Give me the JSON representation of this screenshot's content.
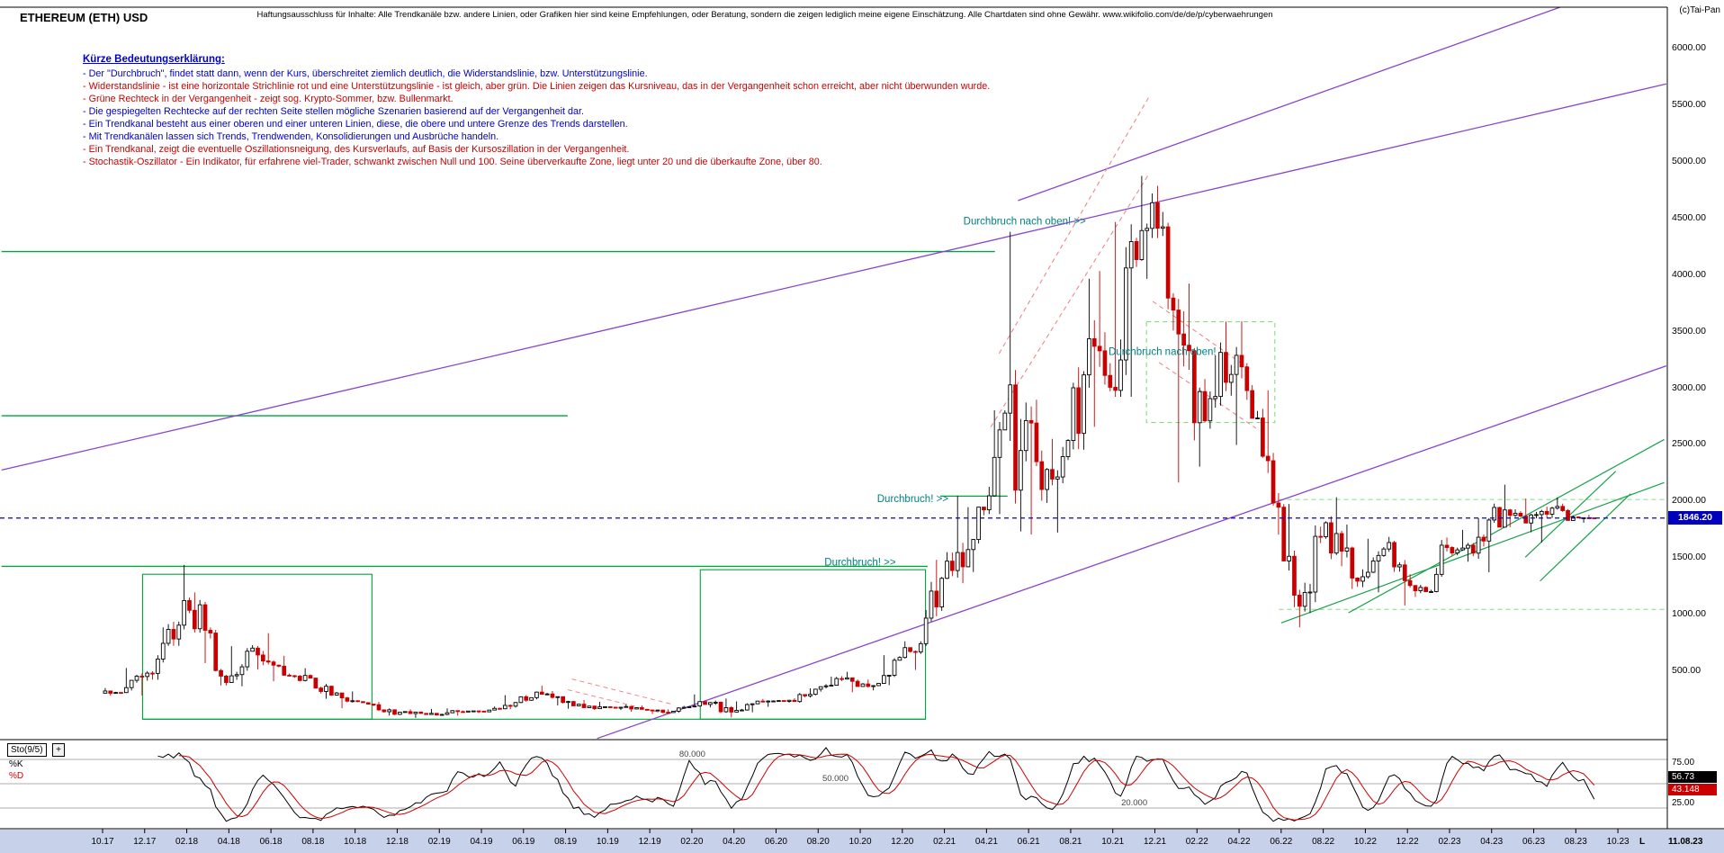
{
  "window": {
    "title": "ETHEREUM (ETH) USD",
    "disclaimer": "Haftungsausschluss für Inhalte: Alle Trendkanäle bzw. andere Linien, oder Grafiken hier sind keine Empfehlungen, oder Beratung, sondern die zeigen lediglich meine eigene Einschätzung. Alle Chartdaten sind ohne Gewähr.  www.wikifolio.com/de/de/p/cyberwaehrungen",
    "copyright": "(c)Tai-Pan"
  },
  "legend": {
    "title": "Kürze Bedeutungserklärung:",
    "lines": [
      {
        "text": "- Der \"Durchbruch\", findet statt dann, wenn der Kurs, überschreitet ziemlich deutlich, die Widerstandslinie, bzw. Unterstützungslinie.",
        "color": "#0000CC"
      },
      {
        "text": "- Widerstandslinie - ist eine horizontale Strichlinie rot und eine Unterstützungslinie - ist gleich, aber grün. Die Linien zeigen das Kursniveau, das in der Vergangenheit schon erreicht, aber nicht überwunden wurde.",
        "color": "#CC0000"
      },
      {
        "text": "- Grüne Rechteck in der Vergangenheit - zeigt sog. Krypto-Sommer, bzw. Bullenmarkt.",
        "color": "#CC0000"
      },
      {
        "text": "- Die gespiegelten Rechtecke auf der rechten Seite stellen mögliche Szenarien basierend auf der Vergangenheit dar.",
        "color": "#0000CC"
      },
      {
        "text": "- Ein Trendkanal besteht aus einer oberen und einer unteren Linien, diese, die obere und untere Grenze des Trends darstellen.",
        "color": "#0000CC"
      },
      {
        "text": "- Mit Trendkanälen lassen sich Trends, Trendwenden, Konsolidierungen und Ausbrüche handeln.",
        "color": "#0000CC"
      },
      {
        "text": "- Ein Trendkanal, zeigt die eventuelle Oszillationsneigung, des Kursverlaufs, auf Basis der Kursoszillation in der Vergangenheit.",
        "color": "#CC0000"
      },
      {
        "text": "- Stochastik-Oszillator - Ein Indikator, für erfahrene viel-Trader, schwankt zwischen Null und 100. Seine überverkaufte Zone, liegt unter 20 und die überkaufte Zone, über 80.",
        "color": "#CC0000"
      }
    ]
  },
  "chart_data": {
    "type": "candlestick",
    "title": "ETHEREUM (ETH) USD",
    "x_axis": {
      "start_month": "2017-10",
      "tick_step_months": 2,
      "tick_labels": [
        "10.17",
        "12.17",
        "02.18",
        "04.18",
        "06.18",
        "08.18",
        "10.18",
        "12.18",
        "02.19",
        "04.19",
        "06.19",
        "08.19",
        "10.19",
        "12.19",
        "02.20",
        "04.20",
        "06.20",
        "08.20",
        "10.20",
        "12.20",
        "02.21",
        "04.21",
        "06.21",
        "08.21",
        "10.21",
        "12.21",
        "02.22",
        "04.22",
        "06.22",
        "08.22",
        "10.22",
        "12.22",
        "02.23",
        "04.23",
        "06.23",
        "08.23",
        "10.23"
      ],
      "last_date_label": "11.08.23",
      "scale_indicator": "L"
    },
    "y_axis": {
      "ticks": [
        {
          "value": 6000,
          "label": "6000.00"
        },
        {
          "value": 5500,
          "label": "5500.00"
        },
        {
          "value": 5000,
          "label": "5000.00"
        },
        {
          "value": 4500,
          "label": "4500.00"
        },
        {
          "value": 4000,
          "label": "4000.00"
        },
        {
          "value": 3500,
          "label": "3500.00"
        },
        {
          "value": 3000,
          "label": "3000.00"
        },
        {
          "value": 2500,
          "label": "2500.00"
        },
        {
          "value": 2000,
          "label": "2000.00"
        },
        {
          "value": 1500,
          "label": "1500.00"
        },
        {
          "value": 1000,
          "label": "1000.00"
        },
        {
          "value": 500,
          "label": "500.00"
        }
      ],
      "current_price": 1846.2,
      "current_price_label": "1846.20"
    },
    "candles_monthly": [
      [
        300,
        345,
        277,
        305
      ],
      [
        305,
        522,
        280,
        447
      ],
      [
        447,
        881,
        410,
        740
      ],
      [
        740,
        1432,
        718,
        1118
      ],
      [
        1118,
        1190,
        565,
        855
      ],
      [
        855,
        880,
        368,
        394
      ],
      [
        394,
        715,
        360,
        670
      ],
      [
        670,
        830,
        510,
        575
      ],
      [
        575,
        630,
        405,
        454
      ],
      [
        454,
        520,
        403,
        433
      ],
      [
        433,
        435,
        250,
        283
      ],
      [
        283,
        315,
        167,
        233
      ],
      [
        233,
        237,
        185,
        198
      ],
      [
        198,
        222,
        102,
        113
      ],
      [
        113,
        157,
        82,
        133
      ],
      [
        133,
        161,
        103,
        107
      ],
      [
        107,
        166,
        102,
        137
      ],
      [
        137,
        147,
        124,
        141
      ],
      [
        141,
        182,
        135,
        162
      ],
      [
        162,
        282,
        158,
        268
      ],
      [
        268,
        365,
        225,
        290
      ],
      [
        290,
        319,
        192,
        218
      ],
      [
        218,
        239,
        163,
        172
      ],
      [
        172,
        224,
        152,
        180
      ],
      [
        180,
        199,
        151,
        182
      ],
      [
        182,
        192,
        135,
        151
      ],
      [
        151,
        157,
        116,
        129
      ],
      [
        129,
        188,
        126,
        180
      ],
      [
        180,
        289,
        174,
        217
      ],
      [
        217,
        253,
        86,
        133
      ],
      [
        133,
        227,
        131,
        206
      ],
      [
        206,
        249,
        179,
        231
      ],
      [
        231,
        254,
        216,
        226
      ],
      [
        226,
        342,
        215,
        335
      ],
      [
        335,
        446,
        313,
        429
      ],
      [
        429,
        488,
        308,
        359
      ],
      [
        359,
        420,
        325,
        386
      ],
      [
        386,
        635,
        370,
        615
      ],
      [
        615,
        758,
        505,
        737
      ],
      [
        737,
        1477,
        716,
        1314
      ],
      [
        1314,
        2042,
        1271,
        1416
      ],
      [
        1416,
        1943,
        1370,
        1919
      ],
      [
        1919,
        2798,
        1881,
        2773
      ],
      [
        2773,
        4374,
        1728,
        2707
      ],
      [
        2707,
        2891,
        1700,
        2275
      ],
      [
        2275,
        2545,
        1718,
        2531
      ],
      [
        2531,
        3960,
        2450,
        3430
      ],
      [
        3430,
        4028,
        2652,
        3001
      ],
      [
        3001,
        4460,
        2917,
        4288
      ],
      [
        4288,
        4868,
        3959,
        4631
      ],
      [
        4631,
        4780,
        3503,
        3683
      ],
      [
        3683,
        3917,
        2160,
        2688
      ],
      [
        2688,
        3284,
        2300,
        2920
      ],
      [
        2920,
        3582,
        2492,
        3283
      ],
      [
        3283,
        3583,
        2727,
        2730
      ],
      [
        2730,
        2974,
        1700,
        1942
      ],
      [
        1942,
        1970,
        881,
        1067
      ],
      [
        1067,
        1782,
        1007,
        1681
      ],
      [
        1681,
        2030,
        1421,
        1554
      ],
      [
        1554,
        1789,
        1220,
        1328
      ],
      [
        1328,
        1663,
        1190,
        1573
      ],
      [
        1573,
        1680,
        1074,
        1294
      ],
      [
        1294,
        1350,
        1150,
        1196
      ],
      [
        1196,
        1674,
        1190,
        1586
      ],
      [
        1586,
        1742,
        1461,
        1606
      ],
      [
        1606,
        1846,
        1368,
        1829
      ],
      [
        1829,
        2141,
        1766,
        1870
      ],
      [
        1870,
        2018,
        1721,
        1874
      ],
      [
        1874,
        1946,
        1630,
        1934
      ],
      [
        1934,
        2029,
        1825,
        1856
      ],
      [
        1856,
        1875,
        1805,
        1846.2
      ]
    ],
    "overlays": {
      "hlines": [
        {
          "p": 4200,
          "m1": -4.8,
          "m2": 42.4,
          "color": "support",
          "w": 1.4
        },
        {
          "p": 2750,
          "m1": -4.8,
          "m2": 22.1,
          "color": "support",
          "w": 1.4
        },
        {
          "p": 1420,
          "m1": -4.8,
          "m2": 39.2,
          "color": "support",
          "w": 1.4
        },
        {
          "p": 2040,
          "m1": 39.8,
          "m2": 43.0,
          "color": "support",
          "w": 1.2
        },
        {
          "p": 70,
          "m1": 1.9,
          "m2": 39.1,
          "color": "support",
          "w": 1.2
        },
        {
          "p": 2010,
          "m1": 55.9,
          "m2": 74.2,
          "color": "support_dashed",
          "dash": true,
          "w": 1
        },
        {
          "p": 1040,
          "m1": 55.9,
          "m2": 74.2,
          "color": "support_dashed",
          "dash": true,
          "w": 1
        }
      ],
      "boxes": [
        {
          "m1": 1.9,
          "m2": 12.8,
          "p1": 70,
          "p2": 1350,
          "color": "support",
          "dash": false
        },
        {
          "m1": 28.4,
          "m2": 39.1,
          "p1": 70,
          "p2": 1390,
          "color": "support",
          "dash": false
        },
        {
          "m1": 49.6,
          "m2": 55.7,
          "p1": 2690,
          "p2": 3580,
          "color": "support_dashed",
          "dash": true
        }
      ],
      "trendlines": [
        {
          "m1": -4.8,
          "p1": 2270,
          "m2": 74.3,
          "p2": 5680,
          "color": "trend_violet",
          "w": 1.3
        },
        {
          "m1": 23.5,
          "p1": -100,
          "m2": 74.3,
          "p2": 3190,
          "color": "trend_violet",
          "w": 1.3
        },
        {
          "m1": 43.5,
          "p1": 4650,
          "m2": 70.8,
          "p2": 6460,
          "color": "trend_violet",
          "w": 1.3
        },
        {
          "m1": 56.0,
          "p1": 920,
          "m2": 74.2,
          "p2": 2160,
          "color": "trend_green",
          "w": 1.2
        },
        {
          "m1": 59.2,
          "p1": 1010,
          "m2": 74.2,
          "p2": 2540,
          "color": "trend_green",
          "w": 1.2
        },
        {
          "m1": 67.6,
          "p1": 1500,
          "m2": 71.9,
          "p2": 2260,
          "color": "trend_green",
          "w": 1.2
        },
        {
          "m1": 68.3,
          "p1": 1290,
          "m2": 72.6,
          "p2": 2060,
          "color": "trend_green",
          "w": 1.2
        },
        {
          "m1": 42.6,
          "p1": 3300,
          "m2": 49.7,
          "p2": 5560,
          "color": "resistance_dashed",
          "dash": true,
          "w": 1.1
        },
        {
          "m1": 42.2,
          "p1": 2650,
          "m2": 49.7,
          "p2": 4880,
          "color": "resistance_dashed",
          "dash": true,
          "w": 1.1
        },
        {
          "m1": 49.9,
          "p1": 3760,
          "m2": 54.6,
          "p2": 3150,
          "color": "resistance_dashed",
          "dash": true,
          "w": 1.1
        },
        {
          "m1": 50.2,
          "p1": 3220,
          "m2": 54.8,
          "p2": 2640,
          "color": "resistance_dashed",
          "dash": true,
          "w": 1.1
        },
        {
          "m1": 22.3,
          "p1": 425,
          "m2": 27.1,
          "p2": 200,
          "color": "resistance_dashed",
          "dash": true,
          "w": 1
        },
        {
          "m1": 22.1,
          "p1": 330,
          "m2": 26.9,
          "p2": 110,
          "color": "resistance_dashed",
          "dash": true,
          "w": 1
        }
      ],
      "texts": [
        {
          "m": 40.9,
          "p": 4470,
          "text": "Durchbruch nach oben! >>"
        },
        {
          "m": 47.8,
          "p": 3320,
          "text": "Durchbruch nach oben!"
        },
        {
          "m": 36.8,
          "p": 2020,
          "text": "Durchbruch! >>"
        },
        {
          "m": 34.3,
          "p": 1460,
          "text": "Durchbruch! >>"
        }
      ]
    },
    "stochastic": {
      "name": "Sto(9/5)",
      "add_button": "+",
      "k_label": "%K",
      "d_label": "%D",
      "k_value": "56.73",
      "d_value": "43.148",
      "upper_axis": "75.00",
      "lower_axis": "25.00",
      "levels": [
        {
          "value": 80,
          "label": "80.000",
          "label_m": 27.4
        },
        {
          "value": 50,
          "label": "50.000",
          "label_m": 34.2
        },
        {
          "value": 20,
          "label": "20.000",
          "label_m": 48.4
        }
      ]
    },
    "colors": {
      "up": "#000000",
      "down": "#C80000",
      "support": "#00A33C",
      "support_dashed": "#82DC82",
      "resistance_dashed": "#EE8888",
      "trend_violet": "#8844CC",
      "trend_green": "#18A04A",
      "price_line": "#0000DD",
      "price_badge_bg": "#0000BB",
      "annotation": "#008080",
      "k_line": "#000000",
      "d_line": "#CC0000",
      "level_line": "#909090",
      "strip_bg": "#C8D1EA"
    }
  }
}
